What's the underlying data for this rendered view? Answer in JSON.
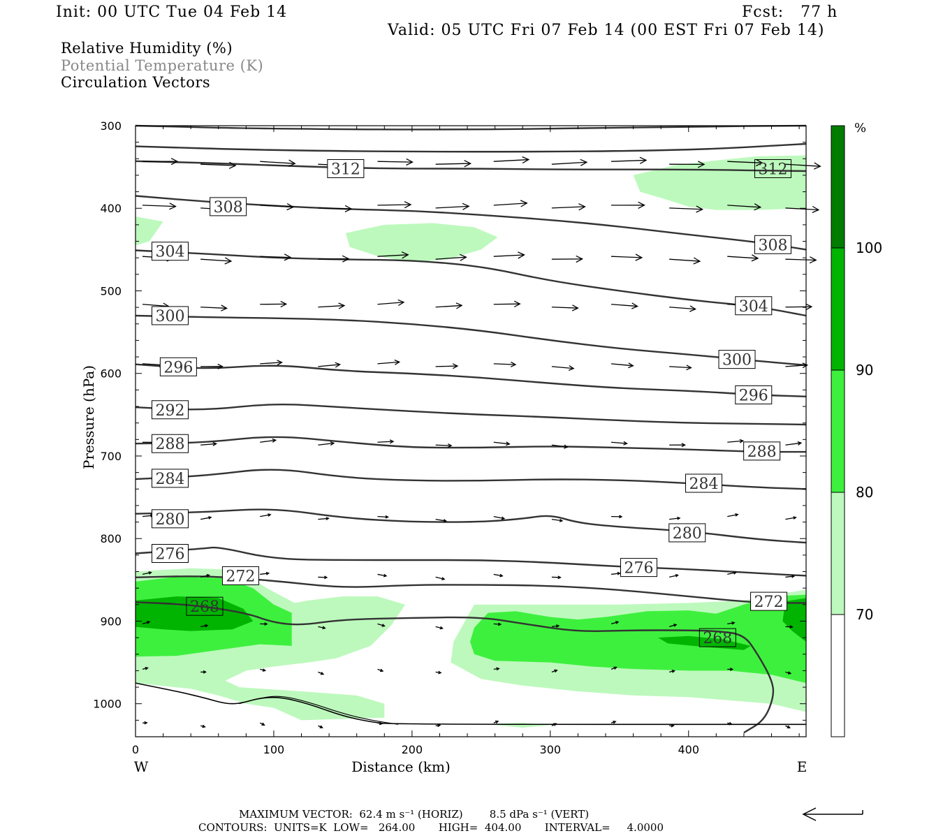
{
  "header": {
    "init": "Init: 00 UTC Tue 04 Feb 14",
    "fcst": "Fcst:   77 h",
    "valid": "Valid: 05 UTC Fri 07 Feb 14 (00 EST Fri 07 Feb 14)"
  },
  "legend": {
    "rh": "Relative Humidity (%)",
    "theta": "Potential Temperature (K)",
    "vectors": "Circulation Vectors"
  },
  "footer": {
    "max_vector": "MAXIMUM VECTOR:  62.4 m s⁻¹ (HORIZ)        8.5 dPa s⁻¹ (VERT)",
    "contours": "CONTOURS:  UNITS=K  LOW=   264.00       HIGH=  404.00       INTERVAL=     4.0000"
  },
  "colors": {
    "rh70": "#bdf9bd",
    "rh80": "#3ef03e",
    "rh90": "#02b402",
    "rh100": "#017c01",
    "contour": "#333333",
    "label_gray": "#888888"
  },
  "chart_data": {
    "type": "cross-section",
    "title": "",
    "xlabel": "Distance (km)",
    "ylabel": "Pressure (hPa)",
    "xlim": [
      0,
      485
    ],
    "ylim": [
      1040,
      300
    ],
    "x_ticks": [
      0,
      100,
      200,
      300,
      400
    ],
    "y_ticks": [
      300,
      400,
      500,
      600,
      700,
      800,
      900,
      1000
    ],
    "x_end_labels": {
      "left": "W",
      "right": "E"
    },
    "colorbar": {
      "unit": "%",
      "levels": [
        70,
        80,
        90,
        100
      ],
      "colors": [
        "#ffffff",
        "#bdf9bd",
        "#3ef03e",
        "#02b402",
        "#017c01"
      ]
    },
    "theta_contours": [
      {
        "level": 312,
        "points": [
          [
            0,
            343
          ],
          [
            50,
            345
          ],
          [
            100,
            348
          ],
          [
            150,
            351
          ],
          [
            200,
            352
          ],
          [
            250,
            352
          ],
          [
            300,
            353
          ],
          [
            350,
            353
          ],
          [
            400,
            353
          ],
          [
            485,
            355
          ]
        ]
      },
      {
        "level": 308,
        "points": [
          [
            0,
            385
          ],
          [
            50,
            392
          ],
          [
            100,
            397
          ],
          [
            150,
            401
          ],
          [
            200,
            403
          ],
          [
            250,
            408
          ],
          [
            300,
            414
          ],
          [
            350,
            422
          ],
          [
            400,
            432
          ],
          [
            450,
            441
          ],
          [
            485,
            450
          ]
        ]
      },
      {
        "level": 304,
        "points": [
          [
            0,
            451
          ],
          [
            50,
            455
          ],
          [
            100,
            460
          ],
          [
            150,
            462
          ],
          [
            200,
            463
          ],
          [
            250,
            470
          ],
          [
            300,
            488
          ],
          [
            350,
            500
          ],
          [
            400,
            511
          ],
          [
            450,
            519
          ],
          [
            485,
            530
          ]
        ]
      },
      {
        "level": 300,
        "points": [
          [
            0,
            530
          ],
          [
            50,
            532
          ],
          [
            100,
            533
          ],
          [
            150,
            535
          ],
          [
            200,
            540
          ],
          [
            250,
            548
          ],
          [
            300,
            560
          ],
          [
            350,
            570
          ],
          [
            400,
            577
          ],
          [
            450,
            585
          ],
          [
            485,
            590
          ]
        ]
      },
      {
        "level": 296,
        "points": [
          [
            0,
            589
          ],
          [
            50,
            595
          ],
          [
            100,
            589
          ],
          [
            150,
            597
          ],
          [
            200,
            600
          ],
          [
            250,
            605
          ],
          [
            300,
            612
          ],
          [
            350,
            618
          ],
          [
            400,
            621
          ],
          [
            450,
            626
          ],
          [
            485,
            628
          ]
        ]
      },
      {
        "level": 292,
        "points": [
          [
            0,
            641
          ],
          [
            50,
            645
          ],
          [
            100,
            636
          ],
          [
            150,
            641
          ],
          [
            200,
            646
          ],
          [
            250,
            650
          ],
          [
            300,
            653
          ],
          [
            350,
            657
          ],
          [
            400,
            660
          ],
          [
            450,
            661
          ],
          [
            485,
            662
          ]
        ]
      },
      {
        "level": 288,
        "points": [
          [
            0,
            685
          ],
          [
            50,
            684
          ],
          [
            100,
            675
          ],
          [
            150,
            683
          ],
          [
            200,
            690
          ],
          [
            250,
            690
          ],
          [
            300,
            688
          ],
          [
            350,
            690
          ],
          [
            400,
            692
          ],
          [
            450,
            695
          ],
          [
            485,
            695
          ]
        ]
      },
      {
        "level": 284,
        "points": [
          [
            0,
            728
          ],
          [
            50,
            724
          ],
          [
            100,
            714
          ],
          [
            150,
            726
          ],
          [
            200,
            730
          ],
          [
            250,
            730
          ],
          [
            300,
            728
          ],
          [
            350,
            729
          ],
          [
            400,
            733
          ],
          [
            450,
            738
          ],
          [
            485,
            740
          ]
        ]
      },
      {
        "level": 280,
        "points": [
          [
            0,
            770
          ],
          [
            50,
            768
          ],
          [
            100,
            763
          ],
          [
            150,
            775
          ],
          [
            200,
            780
          ],
          [
            250,
            780
          ],
          [
            280,
            776
          ],
          [
            300,
            771
          ],
          [
            320,
            781
          ],
          [
            350,
            786
          ],
          [
            400,
            791
          ],
          [
            450,
            801
          ],
          [
            485,
            805
          ]
        ]
      },
      {
        "level": 276,
        "points": [
          [
            0,
            818
          ],
          [
            50,
            812
          ],
          [
            60,
            810
          ],
          [
            100,
            825
          ],
          [
            150,
            826
          ],
          [
            200,
            826
          ],
          [
            250,
            826
          ],
          [
            300,
            829
          ],
          [
            350,
            834
          ],
          [
            400,
            837
          ],
          [
            450,
            842
          ],
          [
            485,
            845
          ]
        ]
      },
      {
        "level": 272,
        "points": [
          [
            0,
            847
          ],
          [
            50,
            845
          ],
          [
            100,
            851
          ],
          [
            150,
            860
          ],
          [
            200,
            856
          ],
          [
            250,
            856
          ],
          [
            300,
            857
          ],
          [
            350,
            862
          ],
          [
            400,
            870
          ],
          [
            450,
            878
          ],
          [
            485,
            878
          ]
        ]
      },
      {
        "level": 268,
        "points": [
          [
            0,
            877
          ],
          [
            40,
            880
          ],
          [
            80,
            890
          ],
          [
            100,
            902
          ],
          [
            120,
            905
          ],
          [
            150,
            898
          ],
          [
            200,
            896
          ],
          [
            250,
            895
          ],
          [
            280,
            903
          ],
          [
            320,
            913
          ],
          [
            360,
            911
          ],
          [
            400,
            911
          ],
          [
            420,
            912
          ],
          [
            440,
            916
          ],
          [
            450,
            940
          ],
          [
            460,
            970
          ],
          [
            462,
            990
          ],
          [
            455,
            1020
          ],
          [
            440,
            1035
          ]
        ]
      }
    ],
    "rh_regions": [
      {
        "level": 70,
        "description": "band near 340-400 hPa east of 360 km"
      },
      {
        "level": 70,
        "description": "blob 420-460 hPa between 150-260 km"
      },
      {
        "level": 70,
        "description": "low-level band 850-1000 hPa across section"
      },
      {
        "level": 80,
        "description": "850-960 hPa from 0-110 km and 240-485 km"
      },
      {
        "level": 90,
        "description": "860-920 hPa from 0-80 km, near 485 km"
      }
    ]
  }
}
